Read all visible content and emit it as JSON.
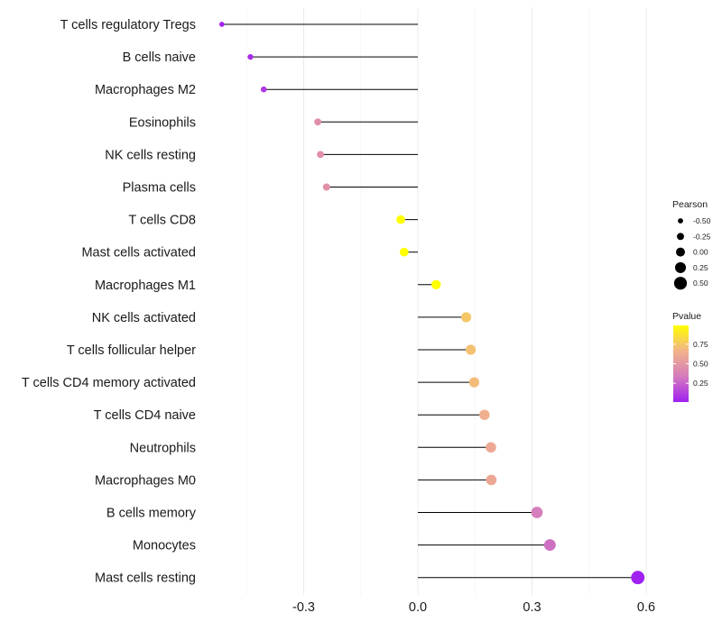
{
  "chart_data": {
    "type": "lollipop",
    "title": "",
    "xlabel": "",
    "ylabel": "",
    "xlim": [
      -0.6,
      0.62
    ],
    "x_ticks": [
      -0.3,
      0.0,
      0.3,
      0.6
    ],
    "x_tick_labels": [
      "-0.3",
      "0.0",
      "0.3",
      "0.6"
    ],
    "grid": true,
    "categories": [
      "T cells regulatory  Tregs",
      "B cells naive",
      "Macrophages M2",
      "Eosinophils",
      "NK cells resting",
      "Plasma cells",
      "T cells CD8",
      "Mast cells activated",
      "Macrophages M1",
      "NK cells activated",
      "T cells follicular helper",
      "T cells CD4 memory activated",
      "T cells CD4 naive",
      "Neutrophils",
      "Macrophages M0",
      "B cells memory",
      "Monocytes",
      "Mast cells resting"
    ],
    "pearson": [
      -0.515,
      -0.44,
      -0.405,
      -0.263,
      -0.256,
      -0.24,
      -0.045,
      -0.036,
      0.048,
      0.127,
      0.139,
      0.148,
      0.175,
      0.192,
      0.193,
      0.313,
      0.347,
      0.578
    ],
    "pvalue": [
      0.02,
      0.06,
      0.1,
      0.45,
      0.46,
      0.47,
      0.99,
      0.99,
      0.99,
      0.75,
      0.72,
      0.7,
      0.64,
      0.6,
      0.6,
      0.35,
      0.3,
      0.01
    ],
    "legend": {
      "size": {
        "title": "Pearson",
        "values": [
          -0.5,
          -0.25,
          0.0,
          0.25,
          0.5
        ],
        "labels": [
          "-0.50",
          "-0.25",
          "0.00",
          "0.25",
          "0.50"
        ]
      },
      "color": {
        "title": "Pvalue",
        "range": [
          0.01,
          0.99
        ],
        "ticks": [
          0.75,
          0.5,
          0.25
        ],
        "tick_labels": [
          "0.75",
          "0.50",
          "0.25"
        ],
        "stops": [
          "#a020f0",
          "#d57bbd",
          "#f2b38a",
          "#ffff00"
        ]
      }
    }
  }
}
